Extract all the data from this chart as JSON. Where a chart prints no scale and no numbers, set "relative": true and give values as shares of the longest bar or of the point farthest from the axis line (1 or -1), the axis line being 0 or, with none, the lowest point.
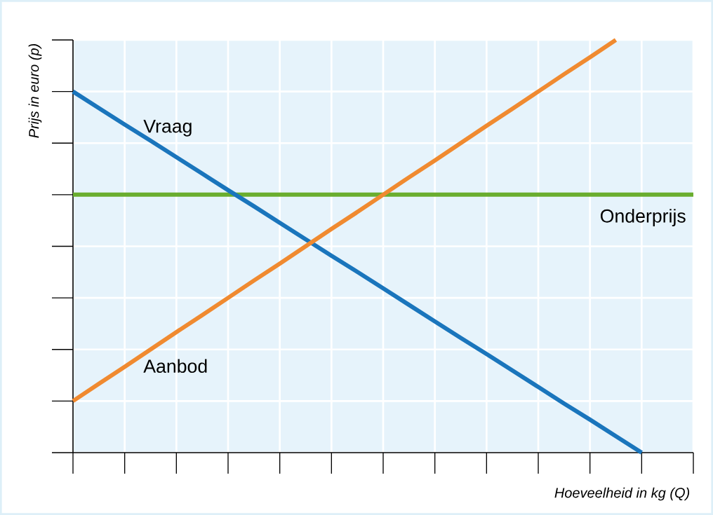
{
  "chart_data": {
    "type": "line",
    "relative": true,
    "xlabel": "Hoeveelheid in kg (Q)",
    "ylabel": "Prijs in euro (p)",
    "categories": [
      null,
      null,
      null,
      null,
      null,
      null,
      null,
      null,
      null,
      null,
      null,
      null,
      null,
      null,
      null,
      null,
      null,
      null,
      null,
      null,
      null,
      null,
      null,
      null,
      null
    ],
    "grid": true,
    "series": [
      {
        "name": "Vraag",
        "color": "#1a75bc",
        "values": [
          0.875,
          0.835,
          0.795,
          0.756,
          0.716,
          0.676,
          0.636,
          0.597,
          0.557,
          0.517,
          0.477,
          0.438,
          0.398,
          0.358,
          0.318,
          0.278,
          0.239,
          0.199,
          0.159,
          0.119,
          0.08,
          0.04,
          0,
          null,
          null
        ]
      },
      {
        "name": "Aanbod",
        "color": "#f08a30",
        "values": [
          0.125,
          0.167,
          0.208,
          0.25,
          0.292,
          0.333,
          0.375,
          0.417,
          0.458,
          0.5,
          0.542,
          0.583,
          0.625,
          0.667,
          0.708,
          0.75,
          0.792,
          0.833,
          0.875,
          0.917,
          0.958,
          1,
          null,
          null,
          null
        ]
      }
    ],
    "ref_lines": [
      {
        "axis": "y",
        "value": 0.625,
        "label": "Onderprijs",
        "color": "#6aad2e"
      }
    ]
  }
}
